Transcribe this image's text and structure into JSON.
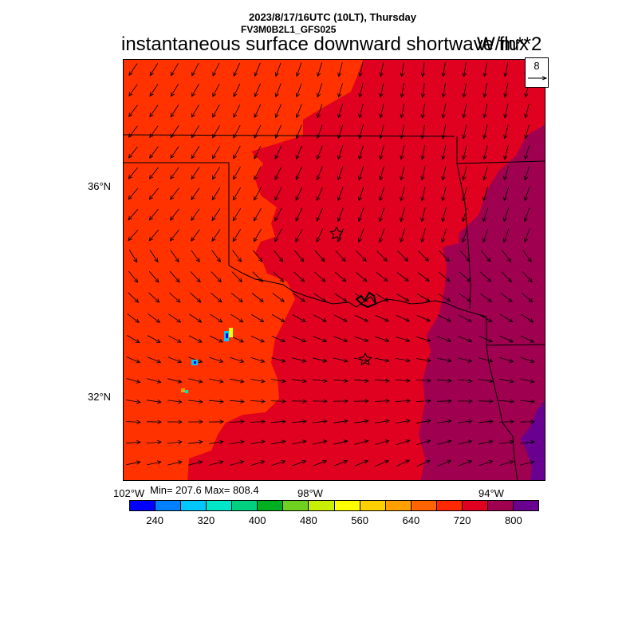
{
  "header": {
    "date_line": "2023/8/17/16UTC (10LT), Thursday",
    "model_line": "FV3M0B2L1_GFS025",
    "title": "instantaneous surface downward shortwave flux",
    "units": "W/m**2"
  },
  "reference_vector": {
    "label": "8"
  },
  "lat_labels": [
    "36°N",
    "32°N"
  ],
  "lon_labels": [
    "102°W",
    "98°W",
    "94°W"
  ],
  "stats": {
    "text": "Min= 207.6 Max= 808.4",
    "min": 207.6,
    "max": 808.4
  },
  "colorbar": {
    "colors": [
      "#0000ff",
      "#0080ff",
      "#00c8ff",
      "#00e6c8",
      "#00d080",
      "#00b020",
      "#70d020",
      "#c8f000",
      "#ffff00",
      "#ffd000",
      "#ffa000",
      "#ff6400",
      "#ff2800",
      "#e00020",
      "#a00050",
      "#6a0090"
    ],
    "tick_labels": [
      "240",
      "320",
      "400",
      "480",
      "560",
      "640",
      "720",
      "800"
    ]
  },
  "map_colors": {
    "background": "#ff3200",
    "zone_720": "#e00020",
    "zone_760": "#a00050",
    "zone_800": "#6a0090",
    "boundary": "#000000",
    "vector": "#000000"
  }
}
